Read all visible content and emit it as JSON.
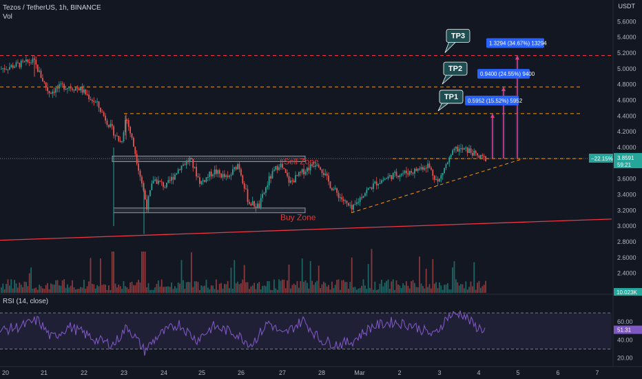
{
  "header": {
    "symbol_line": "Tezos / TetherUS, 1h, BINANCE",
    "volume_label": "Vol",
    "currency": "USDT"
  },
  "rsi": {
    "label": "RSI (14, close)",
    "value_tag": "51.31",
    "ticks": [
      "60.00",
      "40.00",
      "20.00"
    ]
  },
  "price_tag": {
    "change": "−22.15%",
    "price": "3.8591",
    "countdown": "59:21"
  },
  "volume_tag": "10.023K",
  "zones": {
    "sell": "Sell Zone",
    "buy": "Buy Zone"
  },
  "targets": [
    {
      "label": "TP1",
      "box": "0.5952 (15.52%) 5952",
      "price": 4.43
    },
    {
      "label": "TP2",
      "box": "0.9400 (24.55%) 9400",
      "price": 4.77
    },
    {
      "label": "TP3",
      "box": "1.3294 (34.67%) 13294",
      "price": 5.17
    }
  ],
  "colors": {
    "background": "#131722",
    "up": "#26a69a",
    "down": "#ef5350",
    "tp_callout": "#1e4d52",
    "measure_box": "#2962ff",
    "rsi_line": "#7e57c2",
    "trendline": "#f23645",
    "guide": "#ff9800"
  },
  "chart_data": {
    "type": "candlestick",
    "y_axis": {
      "min": 2.3,
      "max": 5.7,
      "ticks": [
        "5.6000",
        "5.4000",
        "5.2000",
        "5.0000",
        "4.8000",
        "4.6000",
        "4.4000",
        "4.2000",
        "4.0000",
        "3.8000",
        "3.6000",
        "3.4000",
        "3.2000",
        "3.0000",
        "2.8000",
        "2.6000",
        "2.4000"
      ]
    },
    "x_ticks": [
      "20",
      "21",
      "22",
      "23",
      "24",
      "25",
      "26",
      "27",
      "28",
      "Mar",
      "2",
      "3",
      "4",
      "5",
      "6",
      "7"
    ],
    "levels": {
      "sell_zone": [
        3.82,
        3.89
      ],
      "buy_zone": [
        3.17,
        3.23
      ],
      "current": 3.8591
    },
    "price_path": [
      [
        0,
        5.0
      ],
      [
        24,
        5.05
      ],
      [
        48,
        5.1
      ],
      [
        56,
        4.95
      ],
      [
        70,
        4.7
      ],
      [
        90,
        4.78
      ],
      [
        115,
        4.75
      ],
      [
        140,
        4.55
      ],
      [
        160,
        4.25
      ],
      [
        175,
        4.05
      ],
      [
        182,
        4.4
      ],
      [
        195,
        3.95
      ],
      [
        205,
        3.55
      ],
      [
        212,
        3.25
      ],
      [
        222,
        3.6
      ],
      [
        240,
        3.5
      ],
      [
        260,
        3.75
      ],
      [
        275,
        3.85
      ],
      [
        290,
        3.55
      ],
      [
        310,
        3.7
      ],
      [
        330,
        3.6
      ],
      [
        345,
        3.8
      ],
      [
        360,
        3.3
      ],
      [
        375,
        3.25
      ],
      [
        390,
        3.6
      ],
      [
        405,
        3.8
      ],
      [
        420,
        3.55
      ],
      [
        440,
        3.7
      ],
      [
        460,
        3.82
      ],
      [
        480,
        3.5
      ],
      [
        495,
        3.35
      ],
      [
        510,
        3.2
      ],
      [
        525,
        3.4
      ],
      [
        545,
        3.55
      ],
      [
        570,
        3.65
      ],
      [
        600,
        3.7
      ],
      [
        620,
        3.78
      ],
      [
        635,
        3.55
      ],
      [
        645,
        3.75
      ],
      [
        660,
        3.98
      ],
      [
        680,
        3.96
      ],
      [
        695,
        3.87
      ],
      [
        705,
        3.86
      ]
    ],
    "rsi_path": [
      [
        0,
        50
      ],
      [
        30,
        55
      ],
      [
        55,
        62
      ],
      [
        75,
        42
      ],
      [
        100,
        55
      ],
      [
        120,
        48
      ],
      [
        140,
        40
      ],
      [
        165,
        35
      ],
      [
        185,
        55
      ],
      [
        210,
        28
      ],
      [
        230,
        45
      ],
      [
        260,
        58
      ],
      [
        285,
        40
      ],
      [
        310,
        55
      ],
      [
        340,
        48
      ],
      [
        365,
        35
      ],
      [
        390,
        60
      ],
      [
        410,
        45
      ],
      [
        440,
        62
      ],
      [
        465,
        40
      ],
      [
        490,
        35
      ],
      [
        510,
        38
      ],
      [
        540,
        55
      ],
      [
        570,
        60
      ],
      [
        600,
        56
      ],
      [
        630,
        45
      ],
      [
        650,
        66
      ],
      [
        670,
        70
      ],
      [
        690,
        55
      ],
      [
        705,
        51
      ]
    ]
  }
}
